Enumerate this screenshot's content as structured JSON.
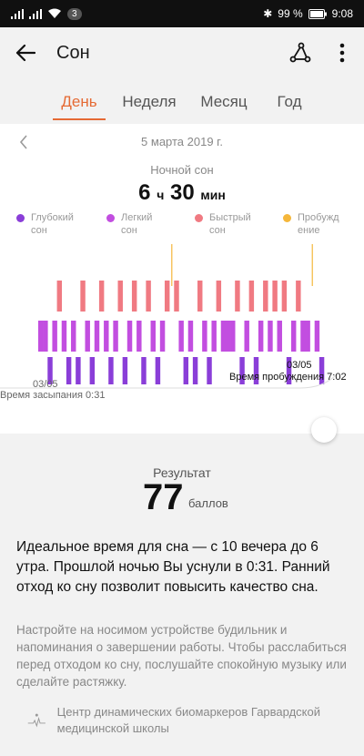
{
  "status_bar": {
    "notifications": "3",
    "battery": "99 %",
    "time": "9:08"
  },
  "app_bar": {
    "title": "Сон"
  },
  "tabs": [
    {
      "label": "День",
      "active": true
    },
    {
      "label": "Неделя",
      "active": false
    },
    {
      "label": "Месяц",
      "active": false
    },
    {
      "label": "Год",
      "active": false
    }
  ],
  "summary": {
    "date": "5 марта 2019 г.",
    "subtitle": "Ночной сон",
    "hours": "6",
    "hours_unit": "ч",
    "minutes": "30",
    "minutes_unit": "мин"
  },
  "legend": [
    {
      "label": "Глубокий сон",
      "color": "#8a3ed8"
    },
    {
      "label": "Легкий сон",
      "color": "#c24ee0"
    },
    {
      "label": "Быстрый сон",
      "color": "#f07a82"
    },
    {
      "label": "Пробуждение",
      "color": "#f5b73b"
    }
  ],
  "chart_data": {
    "type": "hypnogram",
    "stages": [
      "wake",
      "rem",
      "light",
      "deep"
    ],
    "x_start": "03/05",
    "x_end": "03/05",
    "asleep_label": "Время засыпания 0:31",
    "wake_label": "Время пробуждения 7:02",
    "sequence": [
      "light",
      "light",
      "deep",
      "light",
      "rem",
      "light",
      "deep",
      "light",
      "deep",
      "rem",
      "light",
      "deep",
      "light",
      "rem",
      "light",
      "deep",
      "light",
      "rem",
      "deep",
      "light",
      "rem",
      "light",
      "deep",
      "rem",
      "light",
      "deep",
      "light",
      "rem",
      "wake",
      "rem",
      "light",
      "deep",
      "light",
      "deep",
      "rem",
      "light",
      "deep",
      "light",
      "rem",
      "light",
      "light",
      "light",
      "rem",
      "deep",
      "light",
      "rem",
      "deep",
      "light",
      "rem",
      "light",
      "rem",
      "light",
      "rem",
      "deep",
      "light",
      "rem",
      "light",
      "light",
      "wake",
      "light",
      "deep"
    ]
  },
  "result": {
    "label": "Результат",
    "score": "77",
    "unit": "баллов"
  },
  "advice": "Идеальное время для сна — с 10 вечера до 6 утра. Прошлой ночью Вы уснули в 0:31. Ранний отход ко сну позволит повысить качество сна.",
  "tip": "Настройте на носимом устройстве будильник и напоминания о завершении работы. Чтобы расслабиться перед отходом ко сну, послушайте спокойную музыку или сделайте растяжку.",
  "source": "Центр динамических биомаркеров Гарвардской медицинской школы"
}
